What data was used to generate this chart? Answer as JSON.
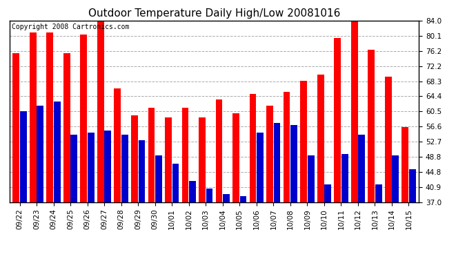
{
  "title": "Outdoor Temperature Daily High/Low 20081016",
  "copyright": "Copyright 2008 Cartronics.com",
  "dates": [
    "09/22",
    "09/23",
    "09/24",
    "09/25",
    "09/26",
    "09/27",
    "09/28",
    "09/29",
    "09/30",
    "10/01",
    "10/02",
    "10/03",
    "10/04",
    "10/05",
    "10/06",
    "10/07",
    "10/08",
    "10/09",
    "10/10",
    "10/11",
    "10/12",
    "10/13",
    "10/14",
    "10/15"
  ],
  "highs": [
    75.5,
    81.0,
    81.0,
    75.5,
    80.5,
    84.5,
    66.5,
    59.5,
    61.5,
    59.0,
    61.5,
    59.0,
    63.5,
    60.0,
    65.0,
    62.0,
    65.5,
    68.5,
    70.0,
    79.5,
    84.0,
    76.5,
    69.5,
    56.5
  ],
  "lows": [
    60.5,
    62.0,
    63.0,
    54.5,
    55.0,
    55.5,
    54.5,
    53.0,
    49.0,
    47.0,
    42.5,
    40.5,
    39.0,
    38.5,
    55.0,
    57.5,
    57.0,
    49.0,
    41.5,
    49.5,
    54.5,
    41.5,
    49.0,
    45.5
  ],
  "high_color": "#ff0000",
  "low_color": "#0000cc",
  "bg_color": "#ffffff",
  "plot_bg_color": "#ffffff",
  "grid_color": "#aaaaaa",
  "yticks": [
    37.0,
    40.9,
    44.8,
    48.8,
    52.7,
    56.6,
    60.5,
    64.4,
    68.3,
    72.2,
    76.2,
    80.1,
    84.0
  ],
  "ymin": 37.0,
  "ymax": 84.0,
  "title_fontsize": 11,
  "tick_fontsize": 7.5,
  "copyright_fontsize": 7
}
